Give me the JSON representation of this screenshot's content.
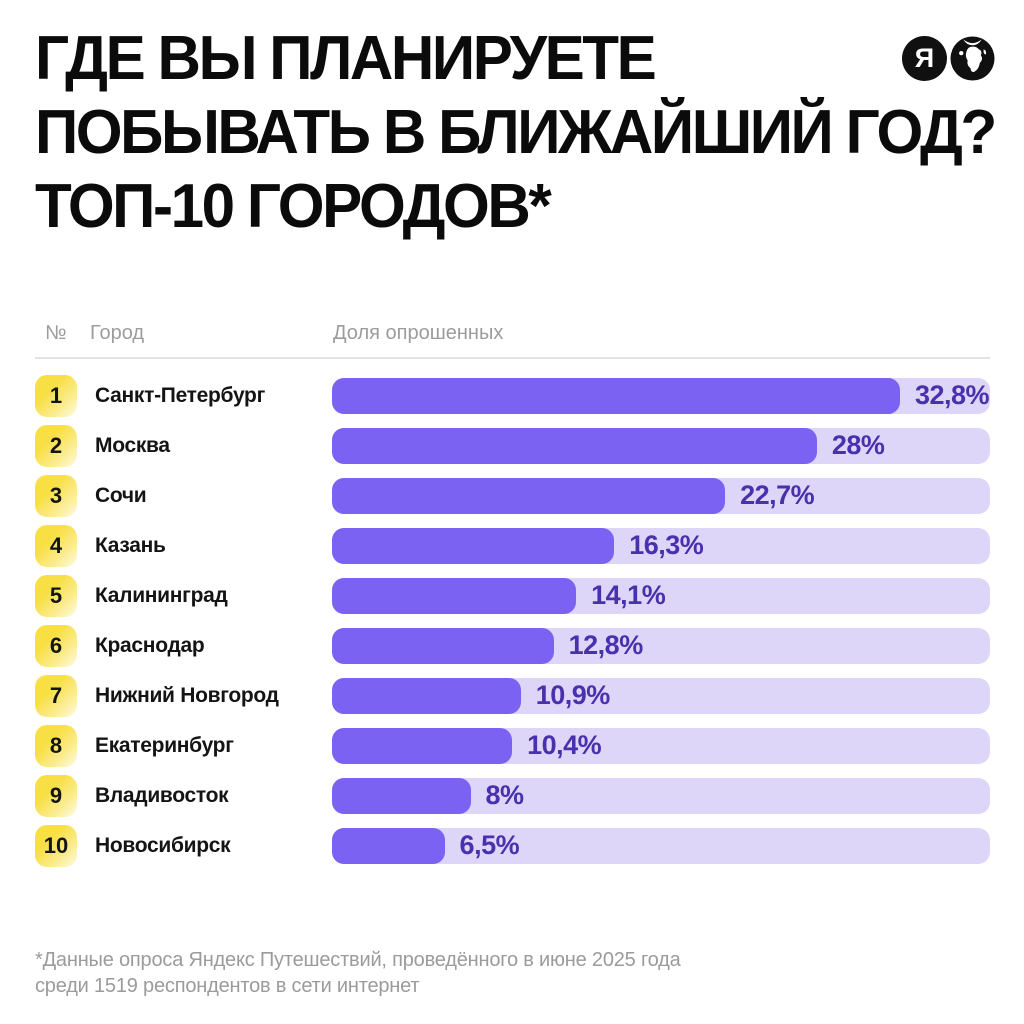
{
  "title": {
    "lines": [
      "ГДЕ ВЫ ПЛАНИРУЕТЕ",
      "ПОБЫВАТЬ В БЛИЖАЙШИЙ ГОД?",
      "ТОП-10 ГОРОДОВ*"
    ]
  },
  "logo": {
    "letter": "Я",
    "globe": "globe-icon"
  },
  "table_header": {
    "rank": "№",
    "city": "Город",
    "share": "Доля опрошенных"
  },
  "chart_data": {
    "type": "bar",
    "orientation": "horizontal",
    "title": "ГДЕ ВЫ ПЛАНИРУЕТЕ ПОБЫВАТЬ В БЛИЖАЙШИЙ ГОД? ТОП-10 ГОРОДОВ*",
    "categories": [
      "Санкт-Петербург",
      "Москва",
      "Сочи",
      "Казань",
      "Калининград",
      "Краснодар",
      "Нижний Новгород",
      "Екатеринбург",
      "Владивосток",
      "Новосибирск"
    ],
    "values": [
      32.8,
      28,
      22.7,
      16.3,
      14.1,
      12.8,
      10.9,
      10.4,
      8,
      6.5
    ],
    "value_labels": [
      "32,8%",
      "28%",
      "22,7%",
      "16,3%",
      "14,1%",
      "12,8%",
      "10,9%",
      "10,4%",
      "8%",
      "6,5%"
    ],
    "ranks": [
      "1",
      "2",
      "3",
      "4",
      "5",
      "6",
      "7",
      "8",
      "9",
      "10"
    ],
    "unit": "%",
    "xlim": [
      0,
      38
    ],
    "grid": false,
    "legend": false,
    "colors": {
      "bar_fill": "#7B62F2",
      "bar_track": "#DDD6F8",
      "value_text": "#4930AC",
      "rank_badge_from": "#F8DF44",
      "rank_badge_to": "#FEFCE4"
    }
  },
  "footer": {
    "line1": "*Данные опроса Яндекс Путешествий, проведённого в июне 2025 года",
    "line2": "среди 1519 респондентов в сети интернет"
  }
}
